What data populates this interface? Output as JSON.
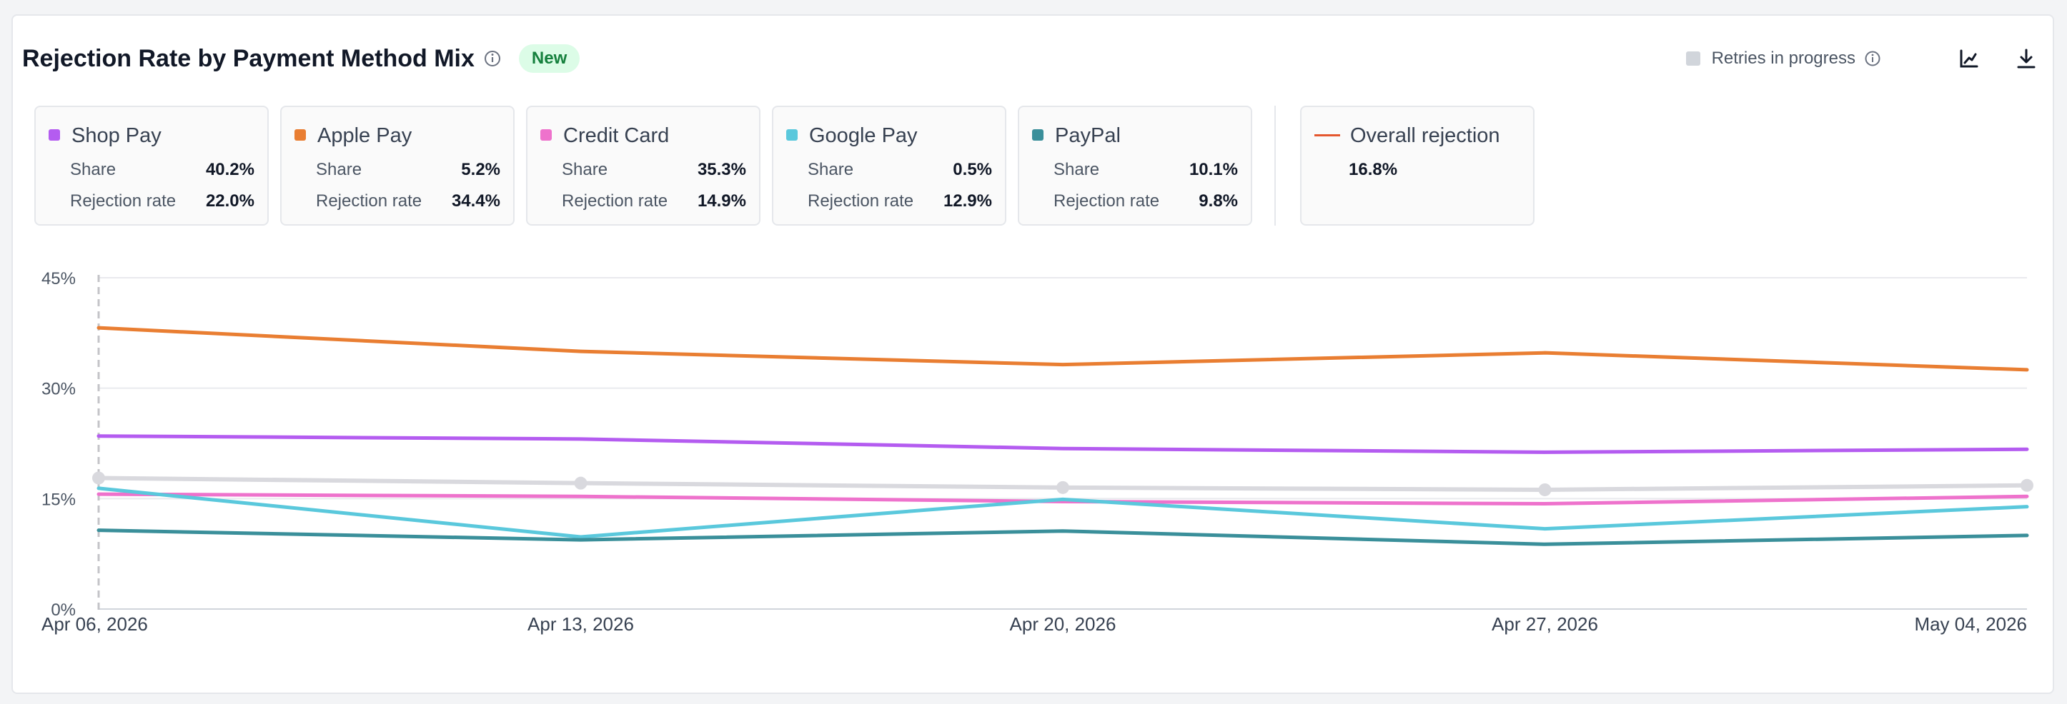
{
  "header": {
    "title": "Rejection Rate by Payment Method Mix",
    "badge": "New",
    "retries_label": "Retries in progress"
  },
  "legend": {
    "share_label": "Share",
    "rate_label": "Rejection rate",
    "items": [
      {
        "name": "Shop Pay",
        "color": "#b45cf0",
        "share": "40.2%",
        "rate": "22.0%"
      },
      {
        "name": "Apple Pay",
        "color": "#e97e32",
        "share": "5.2%",
        "rate": "34.4%"
      },
      {
        "name": "Credit Card",
        "color": "#ee72cc",
        "share": "35.3%",
        "rate": "14.9%"
      },
      {
        "name": "Google Pay",
        "color": "#5ac8dc",
        "share": "0.5%",
        "rate": "12.9%"
      },
      {
        "name": "PayPal",
        "color": "#3a8f9a",
        "share": "10.1%",
        "rate": "9.8%"
      }
    ],
    "overall": {
      "name": "Overall rejection",
      "color": "#e4572e",
      "value": "16.8%"
    }
  },
  "chart_data": {
    "type": "line",
    "x": [
      "Apr 06, 2026",
      "Apr 13, 2026",
      "Apr 20, 2026",
      "Apr 27, 2026",
      "May 04, 2026"
    ],
    "ylim": [
      0,
      45
    ],
    "yticks": [
      "0%",
      "15%",
      "30%",
      "45%"
    ],
    "ytick_values": [
      0,
      15,
      30,
      45
    ],
    "grid": true,
    "series": [
      {
        "name": "Apple Pay",
        "color": "#e97e32",
        "values": [
          38.2,
          35.0,
          33.2,
          34.8,
          32.5
        ]
      },
      {
        "name": "Shop Pay",
        "color": "#b45cf0",
        "values": [
          23.5,
          23.1,
          21.8,
          21.3,
          21.7
        ]
      },
      {
        "name": "Overall rejection",
        "color": "#d9d9de",
        "values": [
          17.8,
          17.1,
          16.5,
          16.2,
          16.8
        ],
        "markers": true
      },
      {
        "name": "Credit Card",
        "color": "#ee72cc",
        "values": [
          15.6,
          15.3,
          14.6,
          14.3,
          15.3
        ]
      },
      {
        "name": "Google Pay",
        "color": "#5ac8dc",
        "values": [
          16.4,
          9.8,
          14.9,
          10.9,
          13.9
        ]
      },
      {
        "name": "PayPal",
        "color": "#3a8f9a",
        "values": [
          10.7,
          9.4,
          10.6,
          8.8,
          10.0
        ]
      }
    ]
  }
}
